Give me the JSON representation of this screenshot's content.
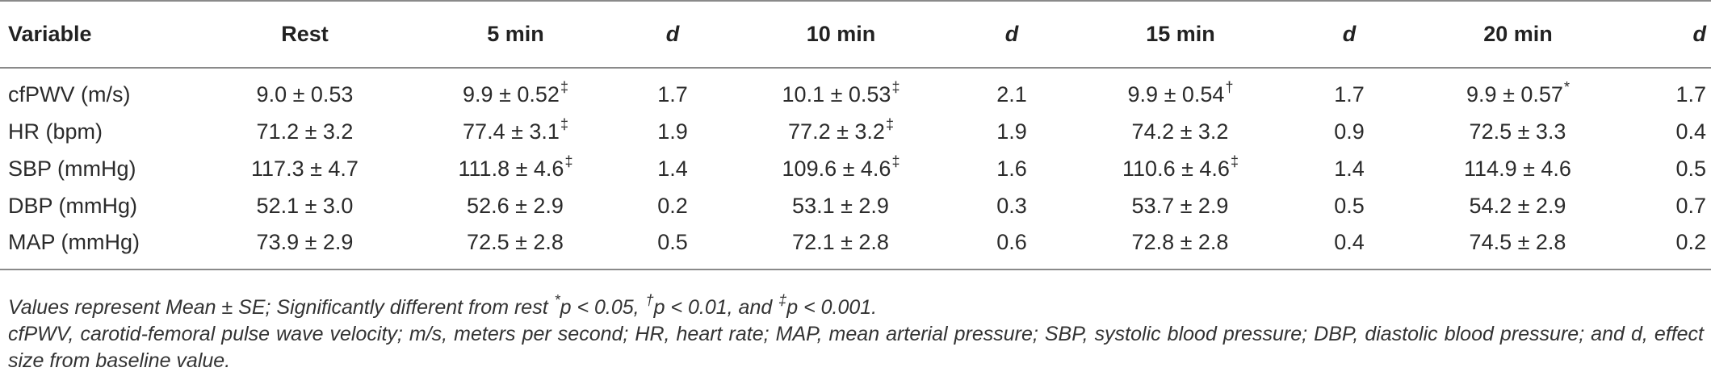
{
  "table": {
    "headers": {
      "variable": "Variable",
      "rest": "Rest",
      "min5": "5 min",
      "d1": "d",
      "min10": "10 min",
      "d2": "d",
      "min15": "15 min",
      "d3": "d",
      "min20": "20 min",
      "d4": "d"
    },
    "rows": [
      {
        "variable": "cfPWV (m/s)",
        "rest": "9.0 ± 0.53",
        "min5": "9.9 ± 0.52",
        "min5_mark": "‡",
        "d1": "1.7",
        "min10": "10.1 ± 0.53",
        "min10_mark": "‡",
        "d2": "2.1",
        "min15": "9.9 ± 0.54",
        "min15_mark": "†",
        "d3": "1.7",
        "min20": "9.9 ± 0.57",
        "min20_mark": "*",
        "d4": "1.7"
      },
      {
        "variable": "HR (bpm)",
        "rest": "71.2 ± 3.2",
        "min5": "77.4 ± 3.1",
        "min5_mark": "‡",
        "d1": "1.9",
        "min10": "77.2 ± 3.2",
        "min10_mark": "‡",
        "d2": "1.9",
        "min15": "74.2 ± 3.2",
        "min15_mark": "",
        "d3": "0.9",
        "min20": "72.5 ± 3.3",
        "min20_mark": "",
        "d4": "0.4"
      },
      {
        "variable": "SBP (mmHg)",
        "rest": "117.3 ± 4.7",
        "min5": "111.8 ±  4.6",
        "min5_mark": "‡",
        "d1": "1.4",
        "min10": "109.6 ± 4.6",
        "min10_mark": "‡",
        "d2": "1.6",
        "min15": "110.6 ± 4.6",
        "min15_mark": "‡",
        "d3": "1.4",
        "min20": "114.9 ± 4.6",
        "min20_mark": "",
        "d4": "0.5"
      },
      {
        "variable": "DBP (mmHg)",
        "rest": "52.1 ± 3.0",
        "min5": "52.6 ± 2.9",
        "min5_mark": "",
        "d1": "0.2",
        "min10": "53.1 ± 2.9",
        "min10_mark": "",
        "d2": "0.3",
        "min15": "53.7 ± 2.9",
        "min15_mark": "",
        "d3": "0.5",
        "min20": "54.2 ± 2.9",
        "min20_mark": "",
        "d4": "0.7"
      },
      {
        "variable": "MAP (mmHg)",
        "rest": "73.9 ± 2.9",
        "min5": "72.5 ± 2.8",
        "min5_mark": "",
        "d1": "0.5",
        "min10": "72.1 ± 2.8",
        "min10_mark": "",
        "d2": "0.6",
        "min15": "72.8 ± 2.8",
        "min15_mark": "",
        "d3": "0.4",
        "min20": "74.5 ± 2.8",
        "min20_mark": "",
        "d4": "0.2"
      }
    ]
  },
  "notes": {
    "significance": {
      "part1": "Values represent Mean ± SE; Significantly different from rest ",
      "mark1": "*",
      "part2": "p < 0.05, ",
      "mark2": "†",
      "part3": "p < 0.01, and ",
      "mark3": "‡",
      "part4": "p < 0.001."
    },
    "abbreviations": "cfPWV, carotid-femoral pulse wave velocity; m/s, meters per second; HR, heart rate; MAP, mean arterial pressure; SBP, systolic blood pressure; DBP, diastolic blood pressure; and d, effect size from baseline value."
  }
}
